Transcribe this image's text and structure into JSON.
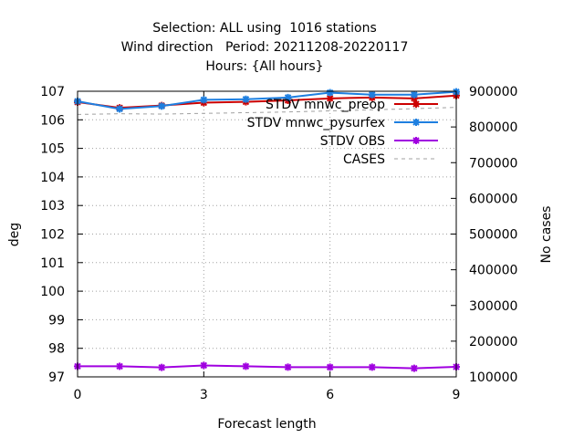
{
  "chart_data": {
    "type": "line",
    "title_lines": [
      "Selection: ALL using  1016 stations",
      "Wind direction   Period: 20211208-20220117",
      "Hours: {All hours}"
    ],
    "xlabel": "Forecast length",
    "ylabel": "deg",
    "y2label": "No cases",
    "xlim": [
      0,
      9
    ],
    "ylim": [
      97,
      107
    ],
    "y2lim": [
      100000,
      900000
    ],
    "xticks": [
      0,
      3,
      6,
      9
    ],
    "yticks": [
      97,
      98,
      99,
      100,
      101,
      102,
      103,
      104,
      105,
      106,
      107
    ],
    "y2ticks": [
      100000,
      200000,
      300000,
      400000,
      500000,
      600000,
      700000,
      800000,
      900000
    ],
    "grid": true,
    "legend_position": "top-right",
    "x": [
      0,
      1,
      2,
      3,
      4,
      5,
      6,
      7,
      8,
      9
    ],
    "series": [
      {
        "name": "STDV mnwc_preop",
        "color": "#cc0000",
        "marker": "star",
        "axis": "y",
        "values": [
          106.62,
          106.42,
          106.5,
          106.6,
          106.63,
          106.68,
          106.75,
          106.78,
          106.75,
          106.85
        ]
      },
      {
        "name": "STDV mnwc_pysurfex",
        "color": "#1e7fe0",
        "marker": "star",
        "axis": "y",
        "values": [
          106.65,
          106.38,
          106.48,
          106.7,
          106.72,
          106.78,
          106.95,
          106.88,
          106.88,
          106.98
        ]
      },
      {
        "name": "STDV OBS",
        "color": "#a000e0",
        "marker": "star",
        "axis": "y",
        "values": [
          97.37,
          97.37,
          97.33,
          97.4,
          97.37,
          97.34,
          97.34,
          97.34,
          97.3,
          97.35
        ]
      },
      {
        "name": "CASES",
        "color": "#a0a0a0",
        "dash": true,
        "axis": "y2",
        "values": [
          835000,
          837000,
          836000,
          838000,
          840000,
          842000,
          845000,
          848000,
          851000,
          855000
        ]
      }
    ]
  }
}
